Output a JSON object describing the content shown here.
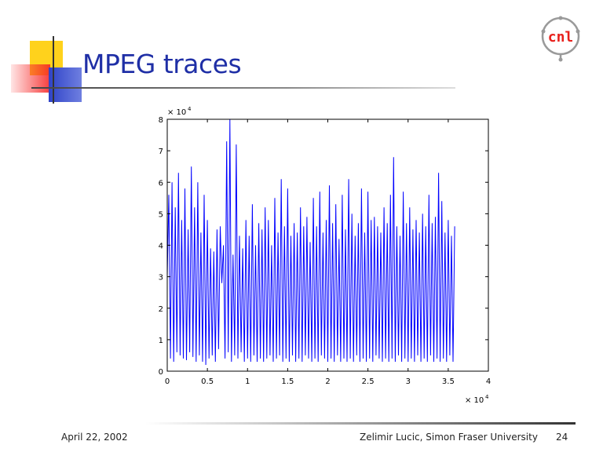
{
  "slide": {
    "title": "MPEG traces",
    "footer_date": "April 22, 2002",
    "footer_author": "Zelimir Lucic, Simon Fraser University",
    "page_number": "24"
  },
  "logo": {
    "icon": "cnl-logo-icon",
    "text": "cnl",
    "ring_color": "#9a9a9a",
    "text_color": "#e8211c"
  },
  "colors": {
    "title": "#1f2fa6",
    "series": "#0000ff"
  },
  "chart_data": {
    "type": "line",
    "title": "",
    "xlabel": "",
    "ylabel": "",
    "x_multiplier_label": "× 10",
    "x_multiplier_exp": "4",
    "y_multiplier_label": "× 10",
    "y_multiplier_exp": "4",
    "xlim": [
      0,
      40000
    ],
    "ylim": [
      0,
      80000
    ],
    "x_ticks": [
      0,
      0.5,
      1,
      1.5,
      2,
      2.5,
      3,
      3.5,
      4
    ],
    "y_ticks": [
      0,
      1,
      2,
      3,
      4,
      5,
      6,
      7,
      8
    ],
    "grid": false,
    "series": [
      {
        "x_start": 0,
        "x_step": 200,
        "values": [
          30000,
          56000,
          4000,
          60000,
          3000,
          52000,
          6000,
          63000,
          5000,
          48000,
          4000,
          58000,
          3500,
          45000,
          6000,
          65000,
          4500,
          52000,
          3000,
          60000,
          5000,
          44000,
          3000,
          56000,
          2000,
          48000,
          4000,
          39000,
          5000,
          38000,
          3000,
          45000,
          7000,
          46000,
          28000,
          40000,
          4000,
          73000,
          6000,
          80000,
          3000,
          37000,
          5000,
          72000,
          4000,
          43000,
          6000,
          39000,
          3000,
          48000,
          4000,
          43000,
          3000,
          53000,
          5000,
          40000,
          3000,
          47000,
          4000,
          45000,
          3000,
          52000,
          4000,
          48000,
          5000,
          40000,
          3000,
          55000,
          4000,
          44000,
          5000,
          61000,
          3000,
          46000,
          4000,
          58000,
          3000,
          43000,
          5000,
          47000,
          3000,
          44000,
          4000,
          52000,
          3000,
          46000,
          5000,
          49000,
          4000,
          41000,
          3000,
          55000,
          4000,
          46000,
          3000,
          57000,
          5000,
          44000,
          4000,
          48000,
          3000,
          59000,
          4000,
          47000,
          3000,
          53000,
          5000,
          42000,
          3000,
          56000,
          4000,
          45000,
          3000,
          61000,
          4000,
          50000,
          3000,
          43000,
          5000,
          47000,
          3000,
          58000,
          4000,
          44000,
          3000,
          57000,
          4000,
          48000,
          3000,
          49000,
          5000,
          46000,
          4000,
          44000,
          3000,
          52000,
          4000,
          47000,
          3000,
          56000,
          4000,
          68000,
          3000,
          46000,
          5000,
          43000,
          3000,
          57000,
          4000,
          47000,
          3000,
          52000,
          4000,
          45000,
          3000,
          48000,
          5000,
          44000,
          3000,
          50000,
          4000,
          46000,
          3000,
          56000,
          5000,
          47000,
          3000,
          49000,
          4000,
          63000,
          3000,
          54000,
          4000,
          44000,
          3000,
          48000,
          5000,
          43000,
          3000,
          46000
        ]
      }
    ]
  }
}
